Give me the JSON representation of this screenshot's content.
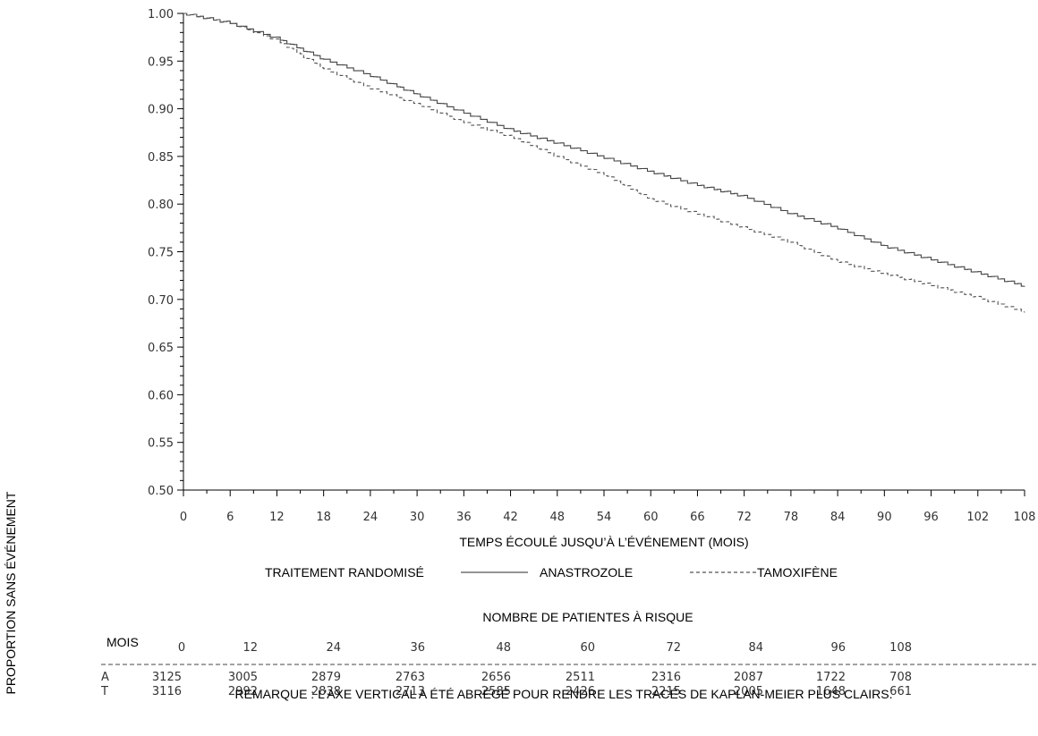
{
  "chart_data": {
    "type": "line",
    "title": "",
    "xlabel": "TEMPS ÉCOULÉ JUSQU’À L’ÉVÉNEMENT (MOIS)",
    "ylabel": "PROPORTION SANS ÉVÉNEMENT",
    "xlim": [
      0,
      108
    ],
    "ylim": [
      0.5,
      1.0
    ],
    "x_ticks": [
      0,
      6,
      12,
      18,
      24,
      30,
      36,
      42,
      48,
      54,
      60,
      66,
      72,
      78,
      84,
      90,
      96,
      102,
      108
    ],
    "y_ticks": [
      "0.50",
      "0.55",
      "0.60",
      "0.65",
      "0.70",
      "0.75",
      "0.80",
      "0.85",
      "0.90",
      "0.95",
      "1.00"
    ],
    "legend": {
      "title": "TRAITEMENT RANDOMISÉ",
      "placement": "bottom"
    },
    "series": [
      {
        "name": "ANASTROZOLE",
        "style": "solid",
        "x": [
          0,
          6,
          12,
          18,
          24,
          30,
          36,
          42,
          48,
          54,
          60,
          66,
          72,
          78,
          84,
          90,
          96,
          102,
          108
        ],
        "y": [
          1.0,
          0.99,
          0.974,
          0.952,
          0.935,
          0.915,
          0.896,
          0.878,
          0.864,
          0.849,
          0.834,
          0.82,
          0.808,
          0.79,
          0.775,
          0.756,
          0.742,
          0.728,
          0.714
        ]
      },
      {
        "name": "TAMOXIFÈNE",
        "style": "dashed",
        "x": [
          0,
          6,
          12,
          18,
          24,
          30,
          36,
          42,
          48,
          54,
          60,
          66,
          72,
          78,
          84,
          90,
          96,
          102,
          108
        ],
        "y": [
          1.0,
          0.99,
          0.972,
          0.942,
          0.922,
          0.905,
          0.886,
          0.871,
          0.85,
          0.831,
          0.805,
          0.79,
          0.775,
          0.76,
          0.74,
          0.727,
          0.715,
          0.702,
          0.687
        ]
      }
    ]
  },
  "risk_table": {
    "title": "NOMBRE DE PATIENTES À RISQUE",
    "header_label": "MOIS",
    "months": [
      "0",
      "12",
      "24",
      "36",
      "48",
      "60",
      "72",
      "84",
      "96",
      "108"
    ],
    "rows": [
      {
        "label": "A",
        "values": [
          "3125",
          "3005",
          "2879",
          "2763",
          "2656",
          "2511",
          "2316",
          "2087",
          "1722",
          "708"
        ]
      },
      {
        "label": "T",
        "values": [
          "3116",
          "2992",
          "2838",
          "2713",
          "2585",
          "2426",
          "2215",
          "2005",
          "1648",
          "661"
        ]
      }
    ]
  },
  "note": "REMARQUE : L’AXE VERTICAL A ÉTÉ ABRÉGÉ POUR RENDRE LES TRACÉS DE KAPLAN-MEIER PLUS CLAIRS."
}
